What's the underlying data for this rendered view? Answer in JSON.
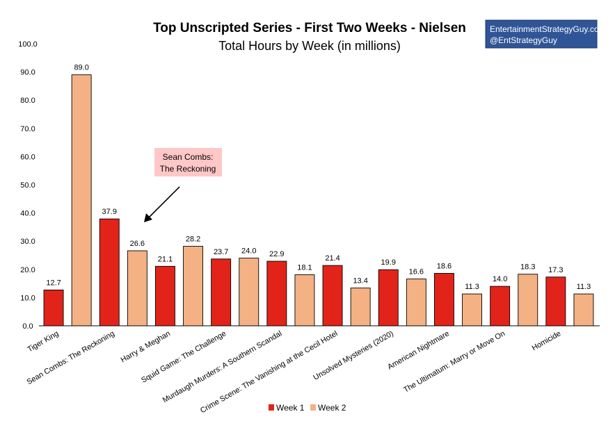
{
  "chart_data": {
    "type": "bar",
    "title": "Top Unscripted Series - First Two Weeks - Nielsen",
    "subtitle": "Total Hours by Week (in millions)",
    "xlabel": "",
    "ylabel": "",
    "ylim": [
      0,
      100
    ],
    "y_ticks": [
      "0.0",
      "10.0",
      "20.0",
      "30.0",
      "40.0",
      "50.0",
      "60.0",
      "70.0",
      "80.0",
      "90.0",
      "100.0"
    ],
    "grid": false,
    "bars": [
      {
        "label": "Tiger King",
        "value": 12.7,
        "value_label": "12.7",
        "series": "Week 1"
      },
      {
        "label": "",
        "value": 89.0,
        "value_label": "89.0",
        "series": "Week 2"
      },
      {
        "label": "Sean Combs: The Reckoning",
        "value": 37.9,
        "value_label": "37.9",
        "series": "Week 1"
      },
      {
        "label": "",
        "value": 26.6,
        "value_label": "26.6",
        "series": "Week 2"
      },
      {
        "label": "Harry & Meghan",
        "value": 21.1,
        "value_label": "21.1",
        "series": "Week 1"
      },
      {
        "label": "",
        "value": 28.2,
        "value_label": "28.2",
        "series": "Week 2"
      },
      {
        "label": "Squid Game: The Challenge",
        "value": 23.7,
        "value_label": "23.7",
        "series": "Week 1"
      },
      {
        "label": "",
        "value": 24.0,
        "value_label": "24.0",
        "series": "Week 2"
      },
      {
        "label": "Murdaugh Murders: A Southern Scandal",
        "value": 22.9,
        "value_label": "22.9",
        "series": "Week 1"
      },
      {
        "label": "",
        "value": 18.1,
        "value_label": "18.1",
        "series": "Week 2"
      },
      {
        "label": "Crime Scene: The Vanishing at the Cecil Hotel",
        "value": 21.4,
        "value_label": "21.4",
        "series": "Week 1"
      },
      {
        "label": "",
        "value": 13.4,
        "value_label": "13.4",
        "series": "Week 2"
      },
      {
        "label": "Unsolved Mysteries (2020)",
        "value": 19.9,
        "value_label": "19.9",
        "series": "Week 1"
      },
      {
        "label": "",
        "value": 16.6,
        "value_label": "16.6",
        "series": "Week 2"
      },
      {
        "label": "American Nightmare",
        "value": 18.6,
        "value_label": "18.6",
        "series": "Week 1"
      },
      {
        "label": "",
        "value": 11.3,
        "value_label": "11.3",
        "series": "Week 2"
      },
      {
        "label": "The Ultimatum: Marry or Move On",
        "value": 14.0,
        "value_label": "14.0",
        "series": "Week 1"
      },
      {
        "label": "",
        "value": 18.3,
        "value_label": "18.3",
        "series": "Week 2"
      },
      {
        "label": "Homicide",
        "value": 17.3,
        "value_label": "17.3",
        "series": "Week 1"
      },
      {
        "label": "",
        "value": 11.3,
        "value_label": "11.3",
        "series": "Week 2"
      }
    ],
    "legend": [
      {
        "name": "Week 1",
        "color": "#e2231a"
      },
      {
        "name": "Week 2",
        "color": "#f4b183"
      }
    ],
    "legend_position": "bottom",
    "annotation": {
      "lines": [
        "Sean Combs:",
        "The Reckoning"
      ],
      "color": "#ffc7c7",
      "points_to": "Sean Combs: The Reckoning Week 2"
    },
    "credit": {
      "lines": [
        "EntertainmentStrategyGuy.com",
        "@EntStrategyGuy"
      ],
      "color": "#2f5597"
    }
  }
}
